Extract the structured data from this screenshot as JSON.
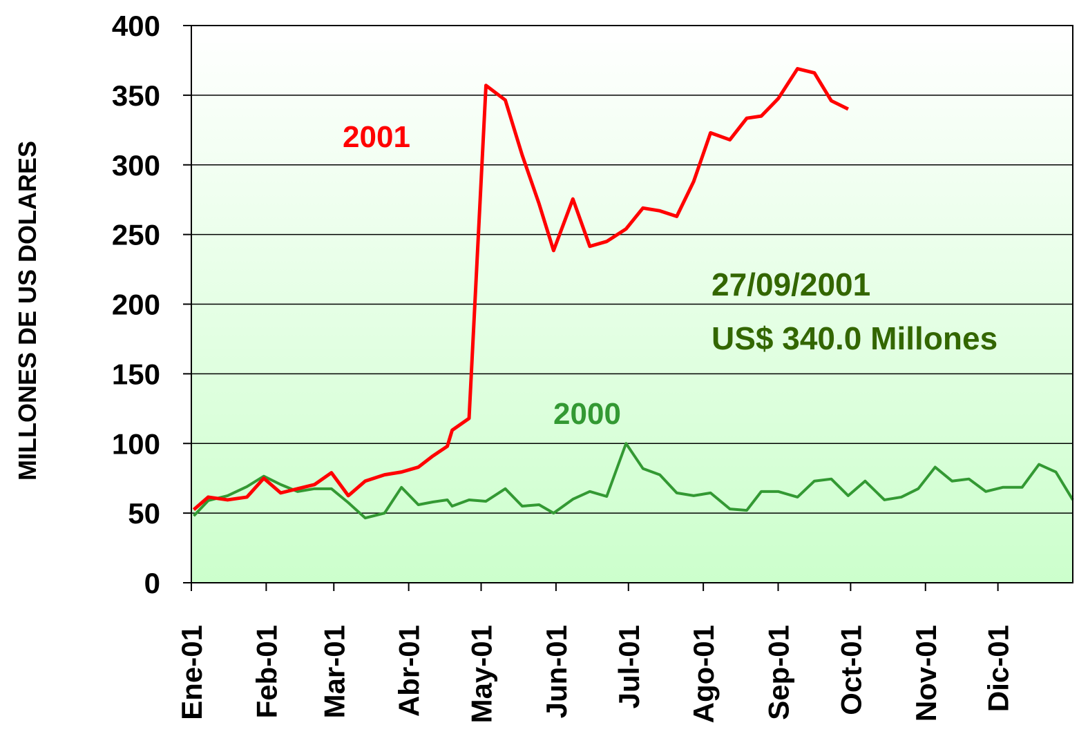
{
  "chart_data": {
    "type": "line",
    "ylabel": "MILLONES DE US DOLARES",
    "ylim": [
      0,
      400
    ],
    "yticks": [
      0,
      50,
      100,
      150,
      200,
      250,
      300,
      350,
      400
    ],
    "grid": true,
    "xlim": [
      0,
      365
    ],
    "xticks": [
      {
        "value": 0,
        "label": "Ene-01"
      },
      {
        "value": 31,
        "label": "Feb-01"
      },
      {
        "value": 59,
        "label": "Mar-01"
      },
      {
        "value": 90,
        "label": "Abr-01"
      },
      {
        "value": 120,
        "label": "May-01"
      },
      {
        "value": 151,
        "label": "Jun-01"
      },
      {
        "value": 181,
        "label": "Jul-01"
      },
      {
        "value": 212,
        "label": "Ago-01"
      },
      {
        "value": 243,
        "label": "Sep-01"
      },
      {
        "value": 273,
        "label": "Oct-01"
      },
      {
        "value": 304,
        "label": "Nov-01"
      },
      {
        "value": 334,
        "label": "Dic-01"
      }
    ],
    "series": [
      {
        "name": "2001",
        "color": "#ff0000",
        "x": [
          1,
          7,
          15,
          23,
          30,
          37,
          44,
          51,
          58,
          65,
          72,
          80,
          87,
          94,
          100,
          106,
          108,
          115,
          122,
          130,
          137,
          144,
          150,
          158,
          165,
          172,
          180,
          187,
          194,
          201,
          208,
          215,
          223,
          230,
          236,
          243,
          251,
          258,
          265,
          272
        ],
        "values": [
          52.5,
          61.5,
          59.5,
          61.5,
          75,
          64.5,
          67.5,
          70.5,
          79,
          62.5,
          73,
          77.5,
          79.5,
          83,
          91,
          98,
          109.5,
          118,
          357,
          346.5,
          307,
          272,
          238.5,
          275.5,
          241.5,
          245,
          254,
          269,
          267,
          263,
          288,
          323,
          318,
          333.5,
          335,
          347.5,
          369,
          366,
          346,
          340
        ]
      },
      {
        "name": "2000",
        "color": "#339933",
        "x": [
          1,
          7,
          15,
          23,
          30,
          37,
          44,
          51,
          58,
          65,
          72,
          80,
          87,
          94,
          100,
          106,
          108,
          115,
          122,
          130,
          137,
          144,
          150,
          158,
          165,
          172,
          180,
          187,
          194,
          201,
          208,
          215,
          223,
          230,
          236,
          243,
          251,
          258,
          265,
          272,
          279,
          287,
          294,
          301,
          308,
          315,
          322,
          329,
          336,
          344,
          351,
          358,
          365
        ],
        "values": [
          48,
          59,
          62.5,
          69,
          76.5,
          70.5,
          65.5,
          67.5,
          67.5,
          57.5,
          46.5,
          50,
          68.5,
          56,
          58,
          59.5,
          55,
          59.5,
          58.5,
          67.5,
          55,
          56,
          50,
          60,
          65.5,
          62,
          100,
          82,
          77.5,
          64.5,
          62.5,
          64.5,
          53,
          52,
          65.5,
          65.5,
          61.5,
          73,
          74.5,
          62.5,
          73,
          59.5,
          61.5,
          67.5,
          83,
          73,
          74.5,
          65.5,
          68.5,
          68.5,
          85,
          79.5,
          59.5
        ]
      }
    ],
    "annotations": [
      {
        "text": "27/09/2001",
        "color": "#336600"
      },
      {
        "text": "US$ 340.0 Millones",
        "color": "#336600"
      }
    ]
  }
}
